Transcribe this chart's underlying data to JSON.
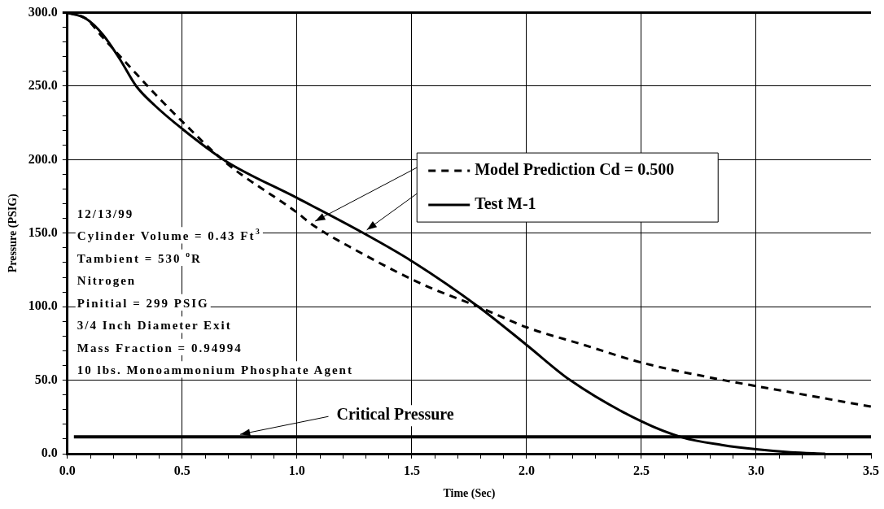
{
  "chart_data": {
    "type": "line",
    "xlabel": "Time (Sec)",
    "ylabel": "Pressure (PSIG)",
    "xlim": [
      0,
      3.5
    ],
    "ylim": [
      0,
      300
    ],
    "xticks": [
      {
        "value": 0,
        "label": "0.0"
      },
      {
        "value": 0.1,
        "label": null
      },
      {
        "value": 0.2,
        "label": null
      },
      {
        "value": 0.3,
        "label": null
      },
      {
        "value": 0.4,
        "label": null
      },
      {
        "value": 0.5,
        "label": "0.5"
      },
      {
        "value": 0.6,
        "label": null
      },
      {
        "value": 0.7,
        "label": null
      },
      {
        "value": 0.8,
        "label": null
      },
      {
        "value": 0.9,
        "label": null
      },
      {
        "value": 1,
        "label": "1.0"
      },
      {
        "value": 1.1,
        "label": null
      },
      {
        "value": 1.2,
        "label": null
      },
      {
        "value": 1.3,
        "label": null
      },
      {
        "value": 1.4,
        "label": null
      },
      {
        "value": 1.5,
        "label": "1.5"
      },
      {
        "value": 1.6,
        "label": null
      },
      {
        "value": 1.7,
        "label": null
      },
      {
        "value": 1.8,
        "label": null
      },
      {
        "value": 1.9,
        "label": null
      },
      {
        "value": 2,
        "label": "2.0"
      },
      {
        "value": 2.1,
        "label": null
      },
      {
        "value": 2.2,
        "label": null
      },
      {
        "value": 2.3,
        "label": null
      },
      {
        "value": 2.4,
        "label": null
      },
      {
        "value": 2.5,
        "label": "2.5"
      },
      {
        "value": 2.6,
        "label": null
      },
      {
        "value": 2.7,
        "label": null
      },
      {
        "value": 2.8,
        "label": null
      },
      {
        "value": 2.9,
        "label": null
      },
      {
        "value": 3,
        "label": "3.0"
      },
      {
        "value": 3.1,
        "label": null
      },
      {
        "value": 3.2,
        "label": null
      },
      {
        "value": 3.3,
        "label": null
      },
      {
        "value": 3.4,
        "label": null
      },
      {
        "value": 3.5,
        "label": "3.5"
      }
    ],
    "yticks": [
      {
        "value": 0,
        "label": "0.0"
      },
      {
        "value": 10,
        "label": null
      },
      {
        "value": 20,
        "label": null
      },
      {
        "value": 30,
        "label": null
      },
      {
        "value": 40,
        "label": null
      },
      {
        "value": 50,
        "label": "50.0"
      },
      {
        "value": 60,
        "label": null
      },
      {
        "value": 70,
        "label": null
      },
      {
        "value": 80,
        "label": null
      },
      {
        "value": 90,
        "label": null
      },
      {
        "value": 100,
        "label": "100.0"
      },
      {
        "value": 110,
        "label": null
      },
      {
        "value": 120,
        "label": null
      },
      {
        "value": 130,
        "label": null
      },
      {
        "value": 140,
        "label": null
      },
      {
        "value": 150,
        "label": "150.0"
      },
      {
        "value": 160,
        "label": null
      },
      {
        "value": 170,
        "label": null
      },
      {
        "value": 180,
        "label": null
      },
      {
        "value": 190,
        "label": null
      },
      {
        "value": 200,
        "label": "200.0"
      },
      {
        "value": 210,
        "label": null
      },
      {
        "value": 220,
        "label": null
      },
      {
        "value": 230,
        "label": null
      },
      {
        "value": 240,
        "label": null
      },
      {
        "value": 250,
        "label": "250.0"
      },
      {
        "value": 260,
        "label": null
      },
      {
        "value": 270,
        "label": null
      },
      {
        "value": 280,
        "label": null
      },
      {
        "value": 290,
        "label": null
      },
      {
        "value": 300,
        "label": "300.0"
      }
    ],
    "grid": true,
    "legend": "top right",
    "marker": "none",
    "series": [
      {
        "name": "Model Prediction Cd = 0.500",
        "color": "#000000",
        "line_style": "dashed",
        "x": [
          0,
          0.08,
          0.155,
          0.273,
          0.38,
          0.5,
          0.69,
          1.0,
          1.065,
          1.25,
          1.55,
          1.79,
          2.0,
          2.25,
          2.5,
          2.86,
          3.0,
          3.25,
          3.5
        ],
        "values": [
          300,
          296,
          283,
          263,
          245,
          226,
          198,
          164,
          156,
          139,
          115,
          100,
          86,
          74,
          62,
          50,
          46,
          39,
          32
        ]
      },
      {
        "name": "Test M-1",
        "color": "#000000",
        "line_style": "solid",
        "x": [
          0,
          0.08,
          0.155,
          0.23,
          0.3,
          0.38,
          0.5,
          0.69,
          1.0,
          1.29,
          1.5,
          1.79,
          2.0,
          2.19,
          2.5,
          2.68,
          2.85,
          3.0,
          3.15,
          3.3
        ],
        "values": [
          300,
          296,
          285,
          268,
          250,
          237,
          221,
          199,
          174,
          150,
          131,
          100,
          74,
          50,
          22,
          11,
          6,
          3,
          1,
          0
        ]
      }
    ],
    "ref_lines": [
      {
        "axis": "y",
        "value": 11.5,
        "label": "Critical Pressure",
        "color": "#000000",
        "line_style": "solid"
      }
    ],
    "annotations": [
      "12/13/99",
      "Cylinder Volume = 0.43 Ft$^{3}$",
      "Tambient = 530 $^{o}$R",
      "Nitrogen",
      "Pinitial = 299 PSIG",
      "3/4 Inch Diameter Exit",
      "Mass Fraction = 0.94994",
      "10 lbs. Monoammonium Phosphate Agent"
    ]
  }
}
